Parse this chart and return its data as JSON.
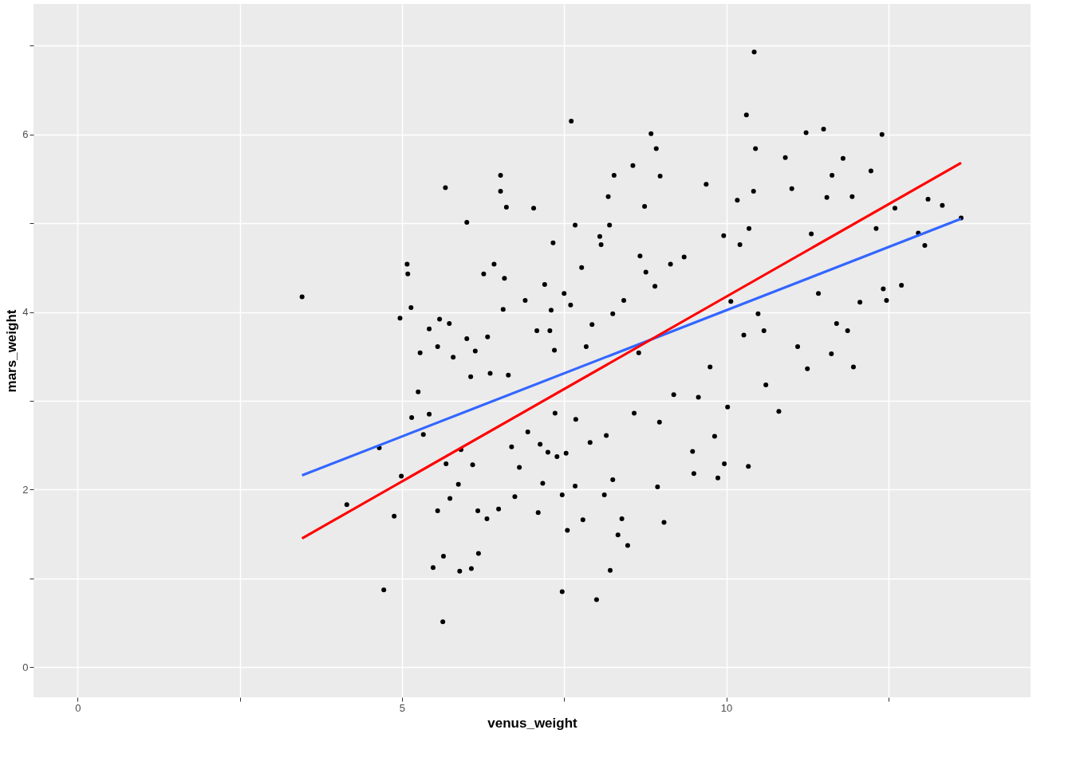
{
  "chart_data": {
    "type": "scatter",
    "xlabel": "venus_weight",
    "ylabel": "mars_weight",
    "xlim": [
      -0.68,
      14.69
    ],
    "ylim": [
      -0.34,
      7.47
    ],
    "xticks": [
      0,
      {
        "value": 2.5,
        "label": null
      },
      5,
      {
        "value": 7.5,
        "label": null
      },
      10,
      {
        "value": 12.5,
        "label": null
      }
    ],
    "yticks": [
      0,
      {
        "value": 1,
        "label": null
      },
      2,
      {
        "value": 3,
        "label": null
      },
      4,
      {
        "value": 5,
        "label": null
      },
      6,
      {
        "value": 7,
        "label": null
      }
    ],
    "grid": true,
    "marker": "circle",
    "series": [
      {
        "color": "#000000",
        "x": [
          3.46,
          4.15,
          4.65,
          4.72,
          4.88,
          4.97,
          4.99,
          5.08,
          5.09,
          5.14,
          5.15,
          5.25,
          5.28,
          5.33,
          5.42,
          5.42,
          5.48,
          5.55,
          5.55,
          5.58,
          5.63,
          5.64,
          5.67,
          5.68,
          5.73,
          5.74,
          5.79,
          5.87,
          5.89,
          5.91,
          6.0,
          6.0,
          6.06,
          6.07,
          6.09,
          6.13,
          6.17,
          6.18,
          6.26,
          6.31,
          6.32,
          6.36,
          6.42,
          6.49,
          6.52,
          6.52,
          6.56,
          6.58,
          6.61,
          6.64,
          6.69,
          6.74,
          6.81,
          6.9,
          6.94,
          7.03,
          7.08,
          7.1,
          7.13,
          7.17,
          7.2,
          7.25,
          7.28,
          7.3,
          7.33,
          7.35,
          7.36,
          7.39,
          7.47,
          7.47,
          7.5,
          7.53,
          7.55,
          7.61,
          7.6,
          7.67,
          7.67,
          7.68,
          7.77,
          7.79,
          7.84,
          7.9,
          7.93,
          8.0,
          8.05,
          8.07,
          8.12,
          8.15,
          8.18,
          8.2,
          8.21,
          8.25,
          8.27,
          8.25,
          8.33,
          8.39,
          8.42,
          8.48,
          8.56,
          8.58,
          8.65,
          8.67,
          8.74,
          8.76,
          8.84,
          8.9,
          8.92,
          8.94,
          8.97,
          8.98,
          9.04,
          9.14,
          9.19,
          9.35,
          9.48,
          9.5,
          9.57,
          9.69,
          9.75,
          9.82,
          9.87,
          9.97,
          9.96,
          10.02,
          10.07,
          10.17,
          10.21,
          10.27,
          10.31,
          10.34,
          10.35,
          10.42,
          10.43,
          10.45,
          10.49,
          10.58,
          10.61,
          10.81,
          10.91,
          11.01,
          11.1,
          11.23,
          11.25,
          11.31,
          11.42,
          11.5,
          11.55,
          11.62,
          11.63,
          11.7,
          11.8,
          11.87,
          11.94,
          11.96,
          12.06,
          12.23,
          12.31,
          12.4,
          12.42,
          12.47,
          12.6,
          12.7,
          12.96,
          13.06,
          13.11,
          13.33,
          13.62
        ],
        "values": [
          4.17,
          1.83,
          2.47,
          0.87,
          1.7,
          3.93,
          2.15,
          4.54,
          4.43,
          4.05,
          2.81,
          3.1,
          3.54,
          2.62,
          3.81,
          2.85,
          1.12,
          1.76,
          3.61,
          3.92,
          0.51,
          1.25,
          5.4,
          2.29,
          3.87,
          1.9,
          3.49,
          2.06,
          1.08,
          2.45,
          5.01,
          3.7,
          3.27,
          1.11,
          2.28,
          3.56,
          1.76,
          1.28,
          4.43,
          1.67,
          3.72,
          3.31,
          4.54,
          1.78,
          5.54,
          5.36,
          4.03,
          4.38,
          5.18,
          3.29,
          2.48,
          1.92,
          2.25,
          4.13,
          2.65,
          5.17,
          3.79,
          1.74,
          2.51,
          2.07,
          4.31,
          2.42,
          3.79,
          4.02,
          4.78,
          3.57,
          2.86,
          2.37,
          1.94,
          0.85,
          4.21,
          2.41,
          1.54,
          6.15,
          4.08,
          4.98,
          2.04,
          2.79,
          4.5,
          1.66,
          3.61,
          2.53,
          3.86,
          0.76,
          4.85,
          4.76,
          1.94,
          2.61,
          5.3,
          4.98,
          1.09,
          2.11,
          5.54,
          3.98,
          1.49,
          1.67,
          4.13,
          1.37,
          5.65,
          2.86,
          3.54,
          4.63,
          5.19,
          4.45,
          6.01,
          4.29,
          5.84,
          2.03,
          2.76,
          5.53,
          1.63,
          4.54,
          3.07,
          4.62,
          2.43,
          2.18,
          3.04,
          5.44,
          3.38,
          2.6,
          2.13,
          2.29,
          4.86,
          2.93,
          4.12,
          5.26,
          4.76,
          3.74,
          6.22,
          2.26,
          4.94,
          5.36,
          6.93,
          5.84,
          3.98,
          3.79,
          3.18,
          2.88,
          5.74,
          5.39,
          3.61,
          6.02,
          3.36,
          4.88,
          4.21,
          6.06,
          5.29,
          3.53,
          5.54,
          3.87,
          5.73,
          3.79,
          5.3,
          3.38,
          4.11,
          5.59,
          4.94,
          6.0,
          4.26,
          4.13,
          5.17,
          4.3,
          4.89,
          4.75,
          5.27,
          5.2,
          5.06
        ]
      },
      {
        "type": "line",
        "color": "#3366ff",
        "marker": "none",
        "line_style": "solid",
        "x": [
          3.46,
          13.62
        ],
        "values": [
          2.16,
          5.05
        ]
      },
      {
        "type": "line",
        "color": "#ff0000",
        "marker": "none",
        "line_style": "solid",
        "x": [
          3.46,
          13.62
        ],
        "values": [
          1.45,
          5.68
        ]
      }
    ]
  }
}
